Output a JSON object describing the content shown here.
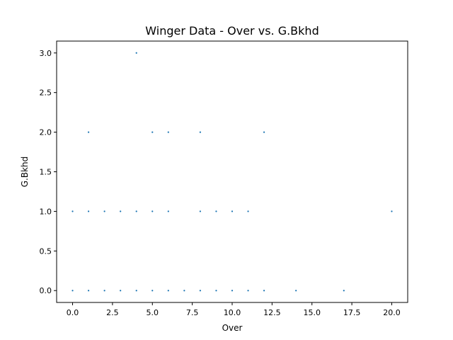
{
  "chart_data": {
    "type": "scatter",
    "title": "Winger Data - Over vs. G.Bkhd",
    "xlabel": "Over",
    "ylabel": "G.Bkhd",
    "xlim": [
      -1.0,
      21.0
    ],
    "ylim": [
      -0.15,
      3.15
    ],
    "xticks": [
      0.0,
      2.5,
      5.0,
      7.5,
      10.0,
      12.5,
      15.0,
      17.5,
      20.0
    ],
    "xtick_labels": [
      "0.0",
      "2.5",
      "5.0",
      "7.5",
      "10.0",
      "12.5",
      "15.0",
      "17.5",
      "20.0"
    ],
    "yticks": [
      0.0,
      0.5,
      1.0,
      1.5,
      2.0,
      2.5,
      3.0
    ],
    "ytick_labels": [
      "0.0",
      "0.5",
      "1.0",
      "1.5",
      "2.0",
      "2.5",
      "3.0"
    ],
    "grid": false,
    "color": "#1f77b4",
    "points": [
      {
        "x": 0,
        "y": 0
      },
      {
        "x": 1,
        "y": 0
      },
      {
        "x": 2,
        "y": 0
      },
      {
        "x": 3,
        "y": 0
      },
      {
        "x": 4,
        "y": 0
      },
      {
        "x": 5,
        "y": 0
      },
      {
        "x": 6,
        "y": 0
      },
      {
        "x": 7,
        "y": 0
      },
      {
        "x": 8,
        "y": 0
      },
      {
        "x": 9,
        "y": 0
      },
      {
        "x": 10,
        "y": 0
      },
      {
        "x": 11,
        "y": 0
      },
      {
        "x": 12,
        "y": 0
      },
      {
        "x": 14,
        "y": 0
      },
      {
        "x": 17,
        "y": 0
      },
      {
        "x": 0,
        "y": 1
      },
      {
        "x": 1,
        "y": 1
      },
      {
        "x": 2,
        "y": 1
      },
      {
        "x": 3,
        "y": 1
      },
      {
        "x": 4,
        "y": 1
      },
      {
        "x": 5,
        "y": 1
      },
      {
        "x": 6,
        "y": 1
      },
      {
        "x": 8,
        "y": 1
      },
      {
        "x": 9,
        "y": 1
      },
      {
        "x": 10,
        "y": 1
      },
      {
        "x": 11,
        "y": 1
      },
      {
        "x": 20,
        "y": 1
      },
      {
        "x": 1,
        "y": 2
      },
      {
        "x": 5,
        "y": 2
      },
      {
        "x": 6,
        "y": 2
      },
      {
        "x": 8,
        "y": 2
      },
      {
        "x": 12,
        "y": 2
      },
      {
        "x": 4,
        "y": 3
      }
    ]
  }
}
